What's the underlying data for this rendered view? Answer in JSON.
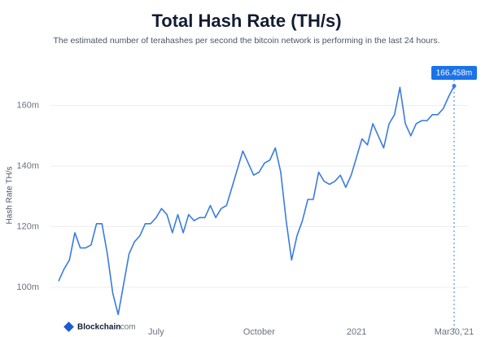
{
  "chart_data": {
    "type": "line",
    "title": "Total Hash Rate (TH/s)",
    "subtitle": "The estimated number of terahashes per second the bitcoin network is performing in the last 24 hours.",
    "y_label": "Hash Rate TH/s",
    "brand": "Blockchain",
    "brand_suffix": ".com",
    "categories": [
      null,
      null,
      null,
      null,
      null,
      null,
      null,
      null,
      null,
      null,
      null,
      null,
      null,
      null,
      null,
      null,
      null,
      null,
      "July",
      null,
      null,
      null,
      null,
      null,
      null,
      null,
      null,
      null,
      null,
      null,
      null,
      null,
      null,
      null,
      null,
      null,
      null,
      "October",
      null,
      null,
      null,
      null,
      null,
      null,
      null,
      null,
      null,
      null,
      null,
      null,
      null,
      null,
      null,
      null,
      null,
      "2021",
      null,
      null,
      null,
      null,
      null,
      null,
      null,
      null,
      null,
      null,
      null,
      null,
      null,
      null,
      null,
      null,
      null,
      "Mar30,'21"
    ],
    "series": [
      {
        "name": "Hash Rate",
        "color": "#3a7be0",
        "values": [
          102,
          106,
          109,
          118,
          113,
          113,
          114,
          121,
          121,
          111,
          98,
          91,
          101,
          111,
          115,
          117,
          121,
          121,
          123,
          126,
          124,
          118,
          124,
          118,
          124,
          122,
          123,
          123,
          127,
          123,
          126,
          127,
          133,
          139,
          145,
          141,
          137,
          138,
          141,
          142,
          146,
          138,
          122,
          109,
          117,
          122,
          129,
          129,
          138,
          135,
          134,
          135,
          137,
          133,
          137,
          143,
          149,
          147,
          154,
          150,
          146,
          154,
          157,
          166,
          154,
          150,
          154,
          155,
          155,
          157,
          157,
          159,
          163,
          166.458
        ],
        "value_labels": [
          null,
          null,
          null,
          null,
          null,
          null,
          null,
          null,
          null,
          null,
          null,
          null,
          null,
          null,
          null,
          null,
          null,
          null,
          null,
          null,
          null,
          null,
          null,
          null,
          null,
          null,
          null,
          null,
          null,
          null,
          null,
          null,
          null,
          null,
          null,
          null,
          null,
          null,
          null,
          null,
          null,
          null,
          null,
          null,
          null,
          null,
          null,
          null,
          null,
          null,
          null,
          null,
          null,
          null,
          null,
          null,
          null,
          null,
          null,
          null,
          null,
          null,
          null,
          null,
          null,
          null,
          null,
          null,
          null,
          null,
          null,
          null,
          null,
          "166.458m"
        ]
      }
    ],
    "ylim": [
      86,
      172
    ],
    "yticks": [
      {
        "value": 100,
        "label": "100m"
      },
      {
        "value": 120,
        "label": "120m"
      },
      {
        "value": 140,
        "label": "140m"
      },
      {
        "value": 160,
        "label": "160m"
      }
    ],
    "grid": true
  }
}
